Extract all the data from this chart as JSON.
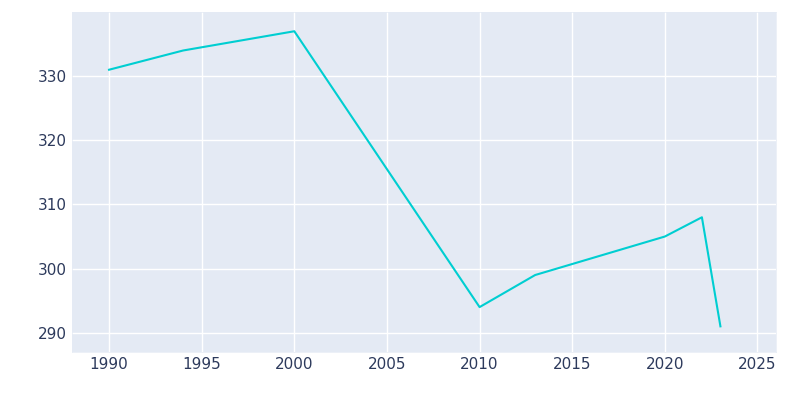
{
  "years": [
    1990,
    1994,
    2000,
    2010,
    2013,
    2020,
    2022,
    2023
  ],
  "population": [
    331,
    334,
    337,
    294,
    299,
    305,
    308,
    291
  ],
  "line_color": "#00CED1",
  "line_width": 1.5,
  "figure_background_color": "#ffffff",
  "plot_background_color": "#e4eaf4",
  "xlim": [
    1988,
    2026
  ],
  "ylim": [
    287,
    340
  ],
  "xticks": [
    1990,
    1995,
    2000,
    2005,
    2010,
    2015,
    2020,
    2025
  ],
  "yticks": [
    290,
    300,
    310,
    320,
    330
  ],
  "grid_color": "#ffffff",
  "tick_color": "#2d3a5c",
  "tick_fontsize": 11
}
